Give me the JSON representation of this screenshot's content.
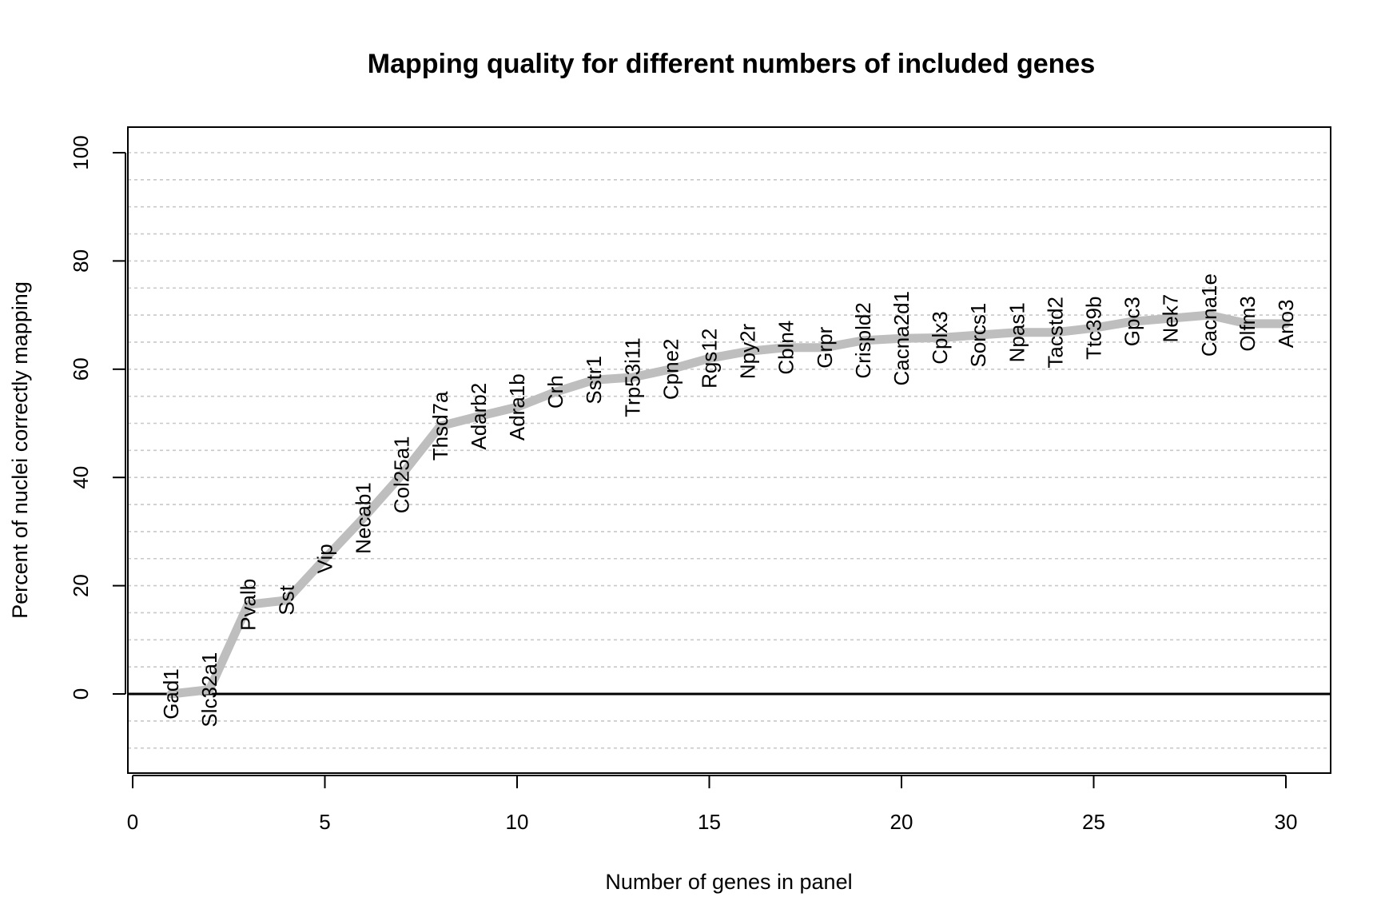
{
  "chart_data": {
    "type": "line",
    "title": "Mapping quality for different numbers of included genes",
    "xlabel": "Number of genes in panel",
    "ylabel": "Percent of nuclei correctly mapping",
    "xlim": [
      0,
      30
    ],
    "ylim": [
      -15,
      100
    ],
    "x_ticks": [
      "0",
      "5",
      "10",
      "15",
      "20",
      "25",
      "30"
    ],
    "y_ticks": [
      "0",
      "20",
      "40",
      "60",
      "80",
      "100"
    ],
    "grid": "horizontal dotted every 5",
    "reference_line": 0,
    "line_color": "#bebebe",
    "series": [
      {
        "x": [
          1,
          2,
          3,
          4,
          5,
          6,
          7,
          8,
          9,
          10,
          11,
          12,
          13,
          14,
          15,
          16,
          17,
          18,
          19,
          20,
          21,
          22,
          23,
          24,
          25,
          26,
          27,
          28,
          29,
          30
        ],
        "y": [
          0,
          0.8,
          16.5,
          17.3,
          25,
          32.5,
          40.5,
          49.5,
          51.3,
          53,
          55.8,
          58,
          58.5,
          60,
          62,
          63.3,
          64,
          64,
          65.3,
          65.7,
          65.8,
          66.3,
          66.8,
          66.8,
          67.6,
          68.8,
          69.4,
          70,
          68.4,
          68.4
        ],
        "labels": [
          "Gad1",
          "Slc32a1",
          "Pvalb",
          "Sst",
          "Vip",
          "Necab1",
          "Col25a1",
          "Thsd7a",
          "Adarb2",
          "Adra1b",
          "Crh",
          "Sstr1",
          "Trp53i11",
          "Cpne2",
          "Rgs12",
          "Npy2r",
          "Cbln4",
          "Grpr",
          "Crispld2",
          "Cacna2d1",
          "Cplx3",
          "Sorcs1",
          "Npas1",
          "Tacstd2",
          "Ttc39b",
          "Gpc3",
          "Nek7",
          "Cacna1e",
          "Olfm3",
          "Ano3"
        ]
      }
    ]
  }
}
